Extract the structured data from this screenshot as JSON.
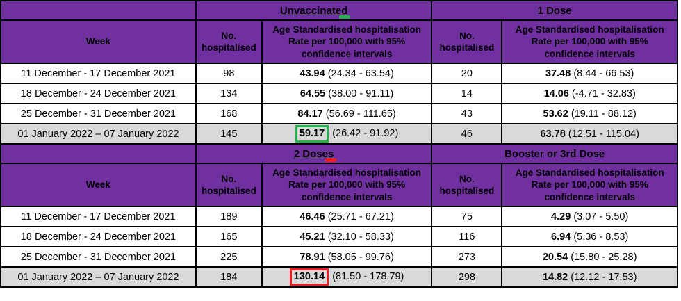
{
  "colors": {
    "header_purple": "#7030A0",
    "shaded_row_grey": "#D9D9D9",
    "row_white": "#FFFFFF",
    "border_black": "#000000",
    "highlight_green": "#22B14C",
    "highlight_red": "#ED1C24"
  },
  "column_headers": {
    "week": "Week",
    "no_hospitalised": "No. hospitalised",
    "rate": "Age Standardised hospitalisation Rate per 100,000 with 95% confidence intervals"
  },
  "annotations": {
    "green_underlined_title": "Unvaccinated",
    "red_underlined_title": "2 Doses",
    "green_boxed_value": "59.17",
    "red_boxed_value": "130.14"
  },
  "top": {
    "left_title": "Unvaccinated",
    "right_title": "1 Dose",
    "rows": [
      {
        "week": "11 December - 17 December 2021",
        "left_n": "98",
        "left_rate": "43.94",
        "left_ci": "(24.34 - 63.54)",
        "right_n": "20",
        "right_rate": "37.48",
        "right_ci": "(8.44 - 66.53)"
      },
      {
        "week": "18 December - 24 December 2021",
        "left_n": "134",
        "left_rate": "64.55",
        "left_ci": "(38.00 - 91.11)",
        "right_n": "14",
        "right_rate": "14.06",
        "right_ci": "(-4.71 - 32.83)"
      },
      {
        "week": "25 December - 31 December 2021",
        "left_n": "168",
        "left_rate": "84.17",
        "left_ci": "(56.69 - 111.65)",
        "right_n": "43",
        "right_rate": "53.62",
        "right_ci": "(19.11 - 88.12)"
      },
      {
        "week": "01 January 2022 – 07 January 2022",
        "left_n": "145",
        "left_rate": "59.17",
        "left_ci": "(26.42 - 91.92)",
        "right_n": "46",
        "right_rate": "63.78",
        "right_ci": "(12.51 - 115.04)"
      }
    ]
  },
  "bottom": {
    "left_title": "2 Doses",
    "right_title": "Booster or 3rd Dose",
    "rows": [
      {
        "week": "11 December - 17 December 2021",
        "left_n": "189",
        "left_rate": "46.46",
        "left_ci": "(25.71 - 67.21)",
        "right_n": "75",
        "right_rate": "4.29",
        "right_ci": "(3.07 - 5.50)"
      },
      {
        "week": "18 December - 24 December 2021",
        "left_n": "165",
        "left_rate": "45.21",
        "left_ci": "(32.10 - 58.33)",
        "right_n": "116",
        "right_rate": "6.94",
        "right_ci": "(5.36 - 8.53)"
      },
      {
        "week": "25 December - 31 December 2021",
        "left_n": "225",
        "left_rate": "78.91",
        "left_ci": "(58.05 - 99.76)",
        "right_n": "273",
        "right_rate": "20.54",
        "right_ci": "(15.80 - 25.28)"
      },
      {
        "week": "01 January 2022 – 07 January 2022",
        "left_n": "184",
        "left_rate": "130.14",
        "left_ci": "(81.50 - 178.79)",
        "right_n": "298",
        "right_rate": "14.82",
        "right_ci": "(12.12 - 17.53)"
      }
    ]
  }
}
